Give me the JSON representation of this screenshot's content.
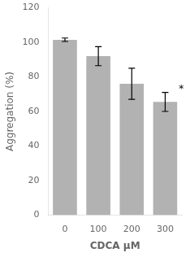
{
  "chart_data": {
    "type": "bar",
    "categories": [
      "0",
      "100",
      "200",
      "300"
    ],
    "values": [
      101.5,
      92.0,
      76.0,
      65.5
    ],
    "errors": [
      1.0,
      5.5,
      9.0,
      5.5
    ],
    "color": "#b2b2b2",
    "xlabel": "CDCA μM",
    "ylabel": "Aggregation (%)",
    "ylim": [
      0,
      120
    ],
    "yticks": [
      0,
      20,
      40,
      60,
      80,
      100,
      120
    ],
    "grid": false,
    "annotations": [
      {
        "text": "*",
        "category": "300"
      }
    ]
  }
}
